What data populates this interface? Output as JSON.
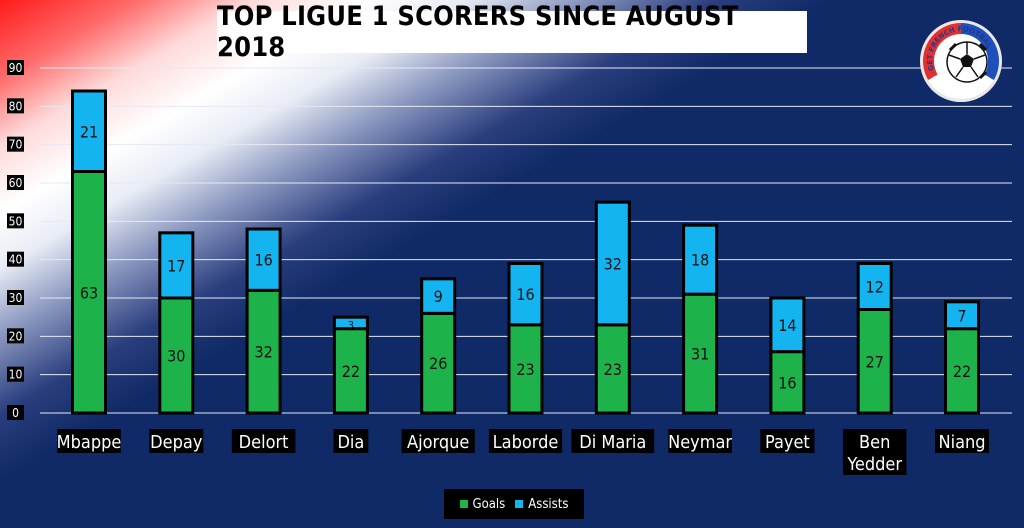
{
  "colors": {
    "goals": "#1db34a",
    "assists": "#14b4f0",
    "background": "#0f2a66",
    "gridline": "#e6e9f2",
    "label_box": "#000000",
    "bar_border": "#000000"
  },
  "logo": {
    "text": "GET FRENCH FOOTBALL NEWS",
    "icon": "football-icon"
  },
  "chart_data": {
    "type": "bar",
    "stacked": true,
    "title": "TOP LIGUE 1 SCORERS SINCE AUGUST 2018",
    "categories": [
      "Mbappe",
      "Depay",
      "Delort",
      "Dia",
      "Ajorque",
      "Laborde",
      "Di Maria",
      "Neymar",
      "Payet",
      "Ben Yedder",
      "Niang"
    ],
    "series": [
      {
        "name": "Goals",
        "values": [
          63,
          30,
          32,
          22,
          26,
          23,
          23,
          31,
          16,
          27,
          22
        ]
      },
      {
        "name": "Assists",
        "values": [
          21,
          17,
          16,
          3,
          9,
          16,
          32,
          18,
          14,
          12,
          7
        ]
      }
    ],
    "ylim": [
      0,
      90
    ],
    "yticks": [
      0,
      10,
      20,
      30,
      40,
      50,
      60,
      70,
      80,
      90
    ],
    "grid": true,
    "legend": "bottom-center",
    "xlabel": "",
    "ylabel": ""
  }
}
